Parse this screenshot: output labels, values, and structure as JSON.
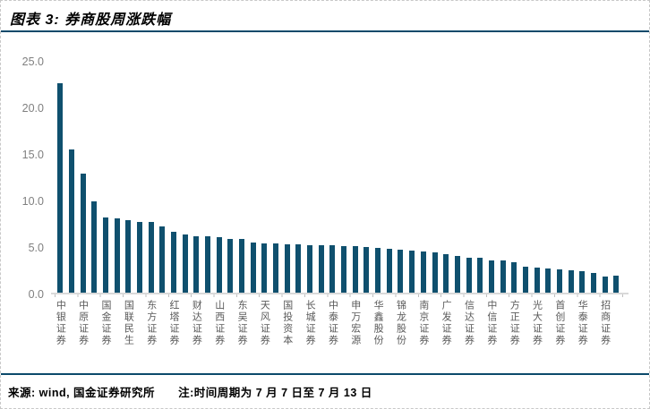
{
  "header": {
    "title": "图表 3: 券商股周涨跌幅"
  },
  "footer": {
    "source": "来源: wind, 国金证券研究所",
    "note": "注:时间周期为 7 月 7 日至 7 月 13 日"
  },
  "colors": {
    "bar": "#0F506E",
    "accent_rule": "#0C4A6B",
    "axis_line": "#D9D9D9",
    "y_tick_label": "#7F7F7F",
    "x_label": "#595959"
  },
  "chart_data": {
    "type": "bar",
    "title": "券商股周涨跌幅",
    "xlabel": "",
    "ylabel": "",
    "ylim": [
      0,
      25
    ],
    "grid": false,
    "legend": false,
    "ytick_labels": [
      "0.0",
      "5.0",
      "10.0",
      "15.0",
      "20.0",
      "25.0"
    ],
    "label_interval": 2,
    "categories": [
      "中银证券",
      "",
      "中原证券",
      "",
      "国金证券",
      "",
      "国联民生",
      "",
      "东方证券",
      "",
      "红塔证券",
      "",
      "财达证券",
      "",
      "山西证券",
      "",
      "东吴证券",
      "",
      "天风证券",
      "",
      "国投资本",
      "",
      "长城证券",
      "",
      "中泰证券",
      "",
      "申万宏源",
      "",
      "华鑫股份",
      "",
      "锦龙股份",
      "",
      "南京证券",
      "",
      "广发证券",
      "",
      "信达证券",
      "",
      "中信证券",
      "",
      "方正证券",
      "",
      "光大证券",
      "",
      "首创证券",
      "",
      "华泰证券",
      "",
      "招商证券",
      ""
    ],
    "values": [
      22.6,
      15.5,
      12.9,
      9.9,
      8.2,
      8.1,
      7.9,
      7.7,
      7.7,
      7.2,
      6.6,
      6.3,
      6.2,
      6.2,
      6.1,
      5.9,
      5.9,
      5.5,
      5.4,
      5.4,
      5.3,
      5.3,
      5.2,
      5.2,
      5.2,
      5.1,
      5.1,
      5.0,
      4.9,
      4.8,
      4.7,
      4.6,
      4.5,
      4.4,
      4.2,
      4.0,
      3.8,
      3.8,
      3.6,
      3.6,
      3.4,
      2.9,
      2.8,
      2.7,
      2.6,
      2.5,
      2.4,
      2.2,
      1.8,
      1.9
    ]
  }
}
